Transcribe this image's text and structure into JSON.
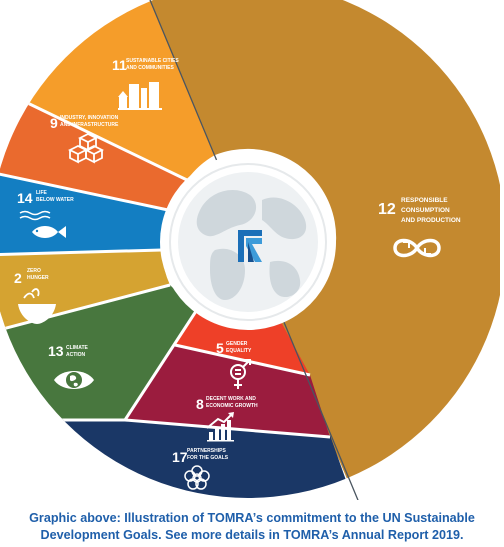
{
  "colors": {
    "goal12": "#c4892f",
    "goal11": "#f59d2a",
    "goal9": "#ea6a2e",
    "goal14": "#137ec2",
    "goal2": "#d5a331",
    "goal13": "#48773e",
    "goal5": "#ee4028",
    "goal8": "#9b1c3e",
    "goal17": "#1a3766",
    "caption": "#1f5faa",
    "globe": "#cfd7dc",
    "logo": "#1b6fb8"
  },
  "goals": [
    {
      "id": "goal12",
      "number": "12",
      "label_lines": [
        "RESPONSIBLE",
        "CONSUMPTION",
        "AND PRODUCTION"
      ],
      "icon": "infinity-icon"
    },
    {
      "id": "goal11",
      "number": "11",
      "label_lines": [
        "SUSTAINABLE CITIES",
        "AND COMMUNITIES"
      ],
      "icon": "city-buildings-icon"
    },
    {
      "id": "goal9",
      "number": "9",
      "label_lines": [
        "INDUSTRY, INNOVATION",
        "AND INFRASTRUCTURE"
      ],
      "icon": "cubes-icon"
    },
    {
      "id": "goal14",
      "number": "14",
      "label_lines": [
        "LIFE",
        "BELOW WATER"
      ],
      "icon": "fish-icon"
    },
    {
      "id": "goal2",
      "number": "2",
      "label_lines": [
        "ZERO",
        "HUNGER"
      ],
      "icon": "bowl-icon"
    },
    {
      "id": "goal13",
      "number": "13",
      "label_lines": [
        "CLIMATE",
        "ACTION"
      ],
      "icon": "eye-globe-icon"
    },
    {
      "id": "goal5",
      "number": "5",
      "label_lines": [
        "GENDER",
        "EQUALITY"
      ],
      "icon": "gender-equality-icon"
    },
    {
      "id": "goal8",
      "number": "8",
      "label_lines": [
        "DECENT WORK AND",
        "ECONOMIC GROWTH"
      ],
      "icon": "growth-chart-icon"
    },
    {
      "id": "goal17",
      "number": "17",
      "label_lines": [
        "PARTNERSHIPS",
        "FOR THE GOALS"
      ],
      "icon": "flower-rings-icon"
    }
  ],
  "center": {
    "globe_icon": "world-globe-icon",
    "logo_icon": "tomra-logo-icon"
  },
  "caption": {
    "line1": "Graphic above: Illustration of TOMRA’s commitment to the UN Sustainable",
    "line2": "Development Goals. See more details in TOMRA’s Annual Report 2019."
  }
}
